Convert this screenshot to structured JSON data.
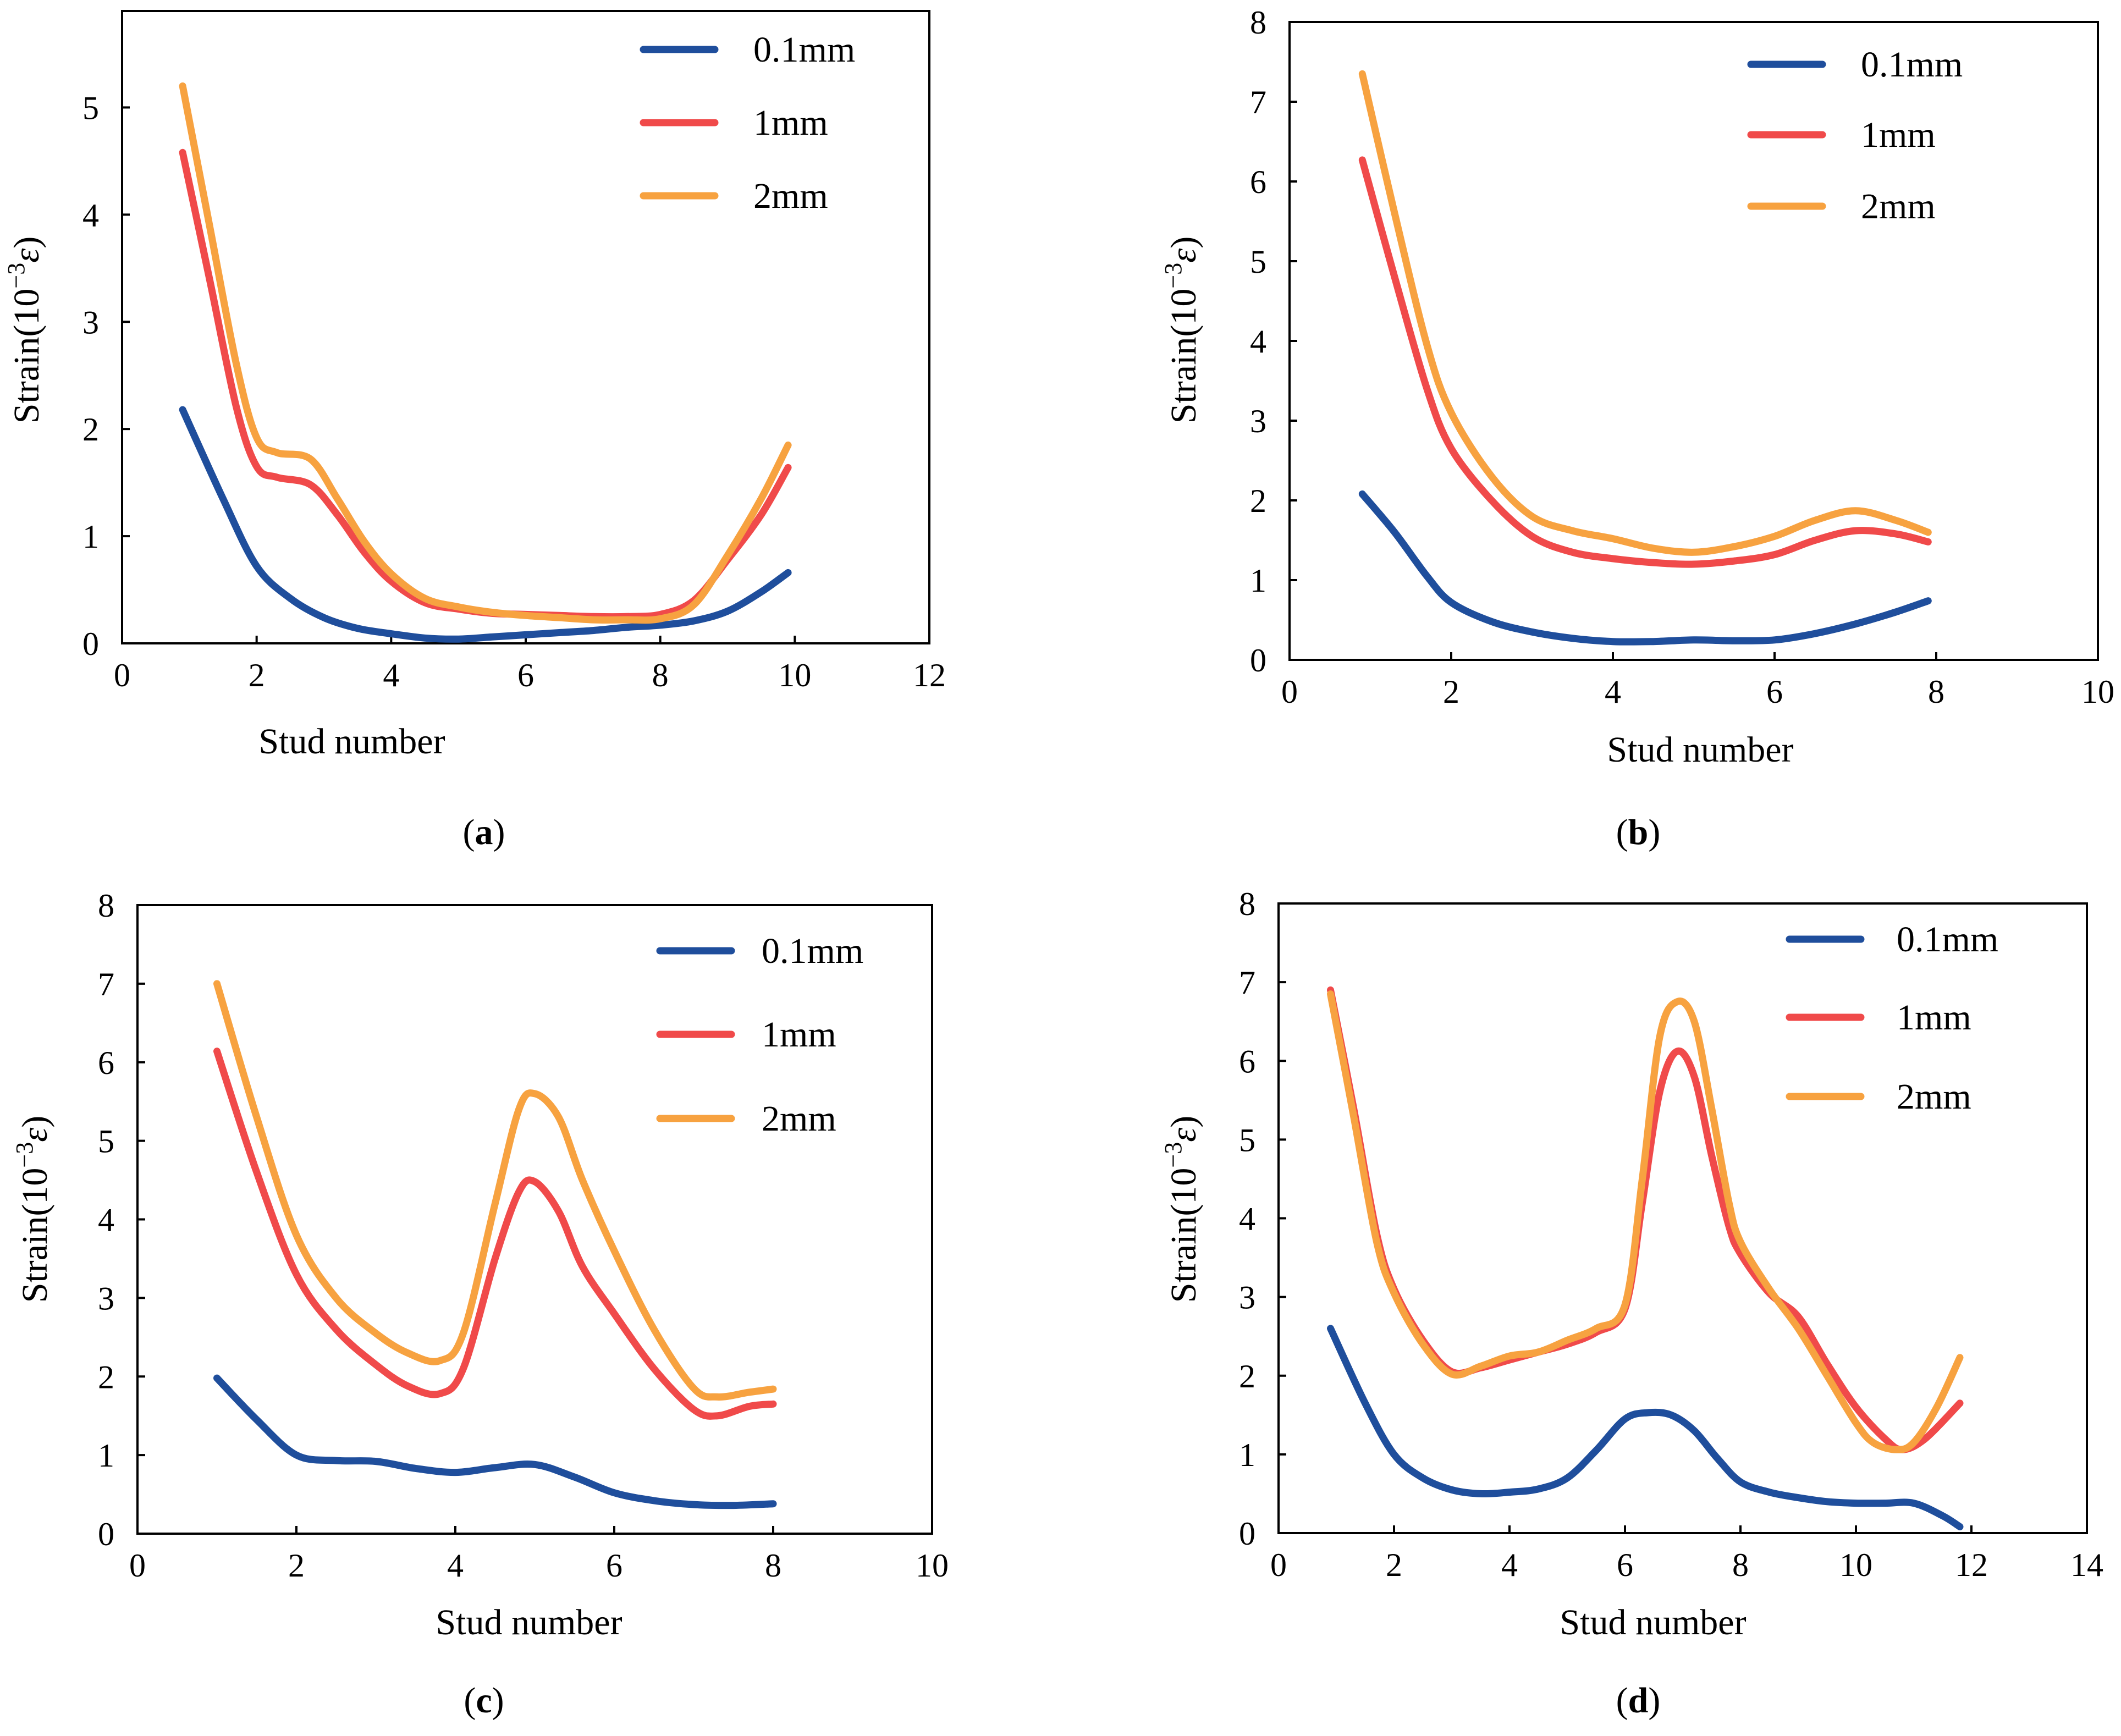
{
  "colors": {
    "blue": "#1f4e9c",
    "red": "#f04a4a",
    "orange": "#f7a240"
  },
  "series_names": [
    "0.1mm",
    "1mm",
    "2mm"
  ],
  "chart_data": [
    {
      "type": "line",
      "panel_label": "a",
      "xlabel": "Stud number",
      "ylabel_prefix": "Strain(10",
      "ylabel_exp": "−3",
      "ylabel_unit": "ε",
      "ylabel_close": ")",
      "xlim": [
        0,
        12
      ],
      "ylim": [
        0,
        5.9
      ],
      "xticks": [
        0,
        2,
        4,
        6,
        8,
        10,
        12
      ],
      "yticks": [
        0,
        1,
        2,
        3,
        4,
        5
      ],
      "legend_position": "top-right",
      "series": [
        {
          "name": "0.1mm",
          "color": "#1f4e9c",
          "x": [
            0.9,
            1.5,
            2.0,
            2.5,
            3.0,
            3.5,
            4.0,
            4.5,
            5.0,
            5.5,
            6.0,
            6.5,
            7.0,
            7.5,
            8.0,
            8.5,
            9.0,
            9.5,
            9.9
          ],
          "y": [
            2.18,
            1.35,
            0.72,
            0.42,
            0.24,
            0.14,
            0.09,
            0.05,
            0.04,
            0.06,
            0.08,
            0.1,
            0.12,
            0.15,
            0.17,
            0.21,
            0.3,
            0.48,
            0.66
          ]
        },
        {
          "name": "1mm",
          "color": "#f04a4a",
          "x": [
            0.9,
            1.3,
            1.7,
            2.0,
            2.3,
            2.8,
            3.2,
            3.6,
            4.0,
            4.5,
            5.0,
            5.5,
            6.0,
            6.5,
            7.0,
            7.5,
            8.0,
            8.5,
            9.0,
            9.5,
            9.9
          ],
          "y": [
            4.58,
            3.4,
            2.2,
            1.65,
            1.55,
            1.48,
            1.2,
            0.85,
            0.58,
            0.38,
            0.32,
            0.28,
            0.27,
            0.26,
            0.25,
            0.25,
            0.27,
            0.4,
            0.78,
            1.2,
            1.64
          ]
        },
        {
          "name": "2mm",
          "color": "#f7a240",
          "x": [
            0.9,
            1.3,
            1.7,
            2.0,
            2.3,
            2.8,
            3.2,
            3.6,
            4.0,
            4.5,
            5.0,
            5.5,
            6.0,
            6.5,
            7.0,
            7.5,
            8.0,
            8.5,
            9.0,
            9.5,
            9.9
          ],
          "y": [
            5.2,
            3.9,
            2.6,
            1.92,
            1.78,
            1.72,
            1.35,
            0.95,
            0.65,
            0.42,
            0.34,
            0.29,
            0.26,
            0.24,
            0.22,
            0.22,
            0.23,
            0.36,
            0.82,
            1.35,
            1.85
          ]
        }
      ]
    },
    {
      "type": "line",
      "panel_label": "b",
      "xlabel": "Stud number",
      "ylabel_prefix": "Strain(10",
      "ylabel_exp": "−3",
      "ylabel_unit": "ε",
      "ylabel_close": ")",
      "xlim": [
        0,
        10
      ],
      "ylim": [
        0,
        8
      ],
      "xticks": [
        0,
        2,
        4,
        6,
        8,
        10
      ],
      "yticks": [
        0,
        1,
        2,
        3,
        4,
        5,
        6,
        7,
        8
      ],
      "legend_position": "top-right",
      "series": [
        {
          "name": "0.1mm",
          "color": "#1f4e9c",
          "x": [
            0.9,
            1.3,
            1.7,
            2.0,
            2.5,
            3.0,
            3.5,
            4.0,
            4.5,
            5.0,
            5.5,
            6.0,
            6.5,
            7.0,
            7.5,
            7.9
          ],
          "y": [
            2.08,
            1.6,
            1.05,
            0.72,
            0.48,
            0.35,
            0.27,
            0.23,
            0.23,
            0.25,
            0.24,
            0.25,
            0.33,
            0.45,
            0.6,
            0.74
          ]
        },
        {
          "name": "1mm",
          "color": "#f04a4a",
          "x": [
            0.9,
            1.3,
            1.7,
            2.0,
            2.5,
            3.0,
            3.5,
            4.0,
            4.5,
            5.0,
            5.5,
            6.0,
            6.5,
            7.0,
            7.5,
            7.9
          ],
          "y": [
            6.27,
            4.8,
            3.4,
            2.65,
            2.0,
            1.55,
            1.35,
            1.27,
            1.22,
            1.2,
            1.24,
            1.32,
            1.5,
            1.62,
            1.58,
            1.48
          ]
        },
        {
          "name": "2mm",
          "color": "#f7a240",
          "x": [
            0.9,
            1.3,
            1.7,
            2.0,
            2.5,
            3.0,
            3.5,
            4.0,
            4.5,
            5.0,
            5.5,
            6.0,
            6.5,
            7.0,
            7.5,
            7.9
          ],
          "y": [
            7.35,
            5.6,
            3.95,
            3.1,
            2.3,
            1.8,
            1.62,
            1.52,
            1.4,
            1.35,
            1.42,
            1.55,
            1.75,
            1.87,
            1.75,
            1.6
          ]
        }
      ]
    },
    {
      "type": "line",
      "panel_label": "c",
      "xlabel": "Stud number",
      "ylabel_prefix": "Strain(10",
      "ylabel_exp": "−3",
      "ylabel_unit": "ε",
      "ylabel_close": ")",
      "xlim": [
        0,
        10
      ],
      "ylim": [
        0,
        8
      ],
      "xticks": [
        0,
        2,
        4,
        6,
        8,
        10
      ],
      "yticks": [
        0,
        1,
        2,
        3,
        4,
        5,
        6,
        7,
        8
      ],
      "legend_position": "top-right",
      "series": [
        {
          "name": "0.1mm",
          "color": "#1f4e9c",
          "x": [
            1.0,
            1.5,
            2.0,
            2.5,
            3.0,
            3.5,
            4.0,
            4.5,
            5.0,
            5.5,
            6.0,
            6.5,
            7.0,
            7.5,
            8.0
          ],
          "y": [
            1.98,
            1.45,
            1.0,
            0.93,
            0.92,
            0.83,
            0.78,
            0.84,
            0.88,
            0.72,
            0.52,
            0.42,
            0.37,
            0.36,
            0.38
          ]
        },
        {
          "name": "1mm",
          "color": "#f04a4a",
          "x": [
            1.0,
            1.5,
            2.0,
            2.5,
            3.0,
            3.4,
            3.8,
            4.1,
            4.5,
            4.8,
            5.0,
            5.3,
            5.6,
            6.0,
            6.5,
            7.0,
            7.3,
            7.7,
            8.0
          ],
          "y": [
            6.14,
            4.6,
            3.3,
            2.6,
            2.15,
            1.88,
            1.78,
            2.1,
            3.5,
            4.35,
            4.48,
            4.1,
            3.4,
            2.8,
            2.1,
            1.58,
            1.5,
            1.62,
            1.65
          ]
        },
        {
          "name": "2mm",
          "color": "#f7a240",
          "x": [
            1.0,
            1.5,
            2.0,
            2.5,
            3.0,
            3.4,
            3.8,
            4.1,
            4.5,
            4.8,
            5.0,
            5.3,
            5.6,
            6.0,
            6.5,
            7.0,
            7.3,
            7.7,
            8.0
          ],
          "y": [
            7.0,
            5.3,
            3.8,
            3.0,
            2.55,
            2.3,
            2.2,
            2.55,
            4.2,
            5.4,
            5.6,
            5.3,
            4.5,
            3.6,
            2.6,
            1.85,
            1.74,
            1.8,
            1.84
          ]
        }
      ]
    },
    {
      "type": "line",
      "panel_label": "d",
      "xlabel": "Stud number",
      "ylabel_prefix": "Strain(10",
      "ylabel_exp": "−3",
      "ylabel_unit": "ε",
      "ylabel_close": ")",
      "xlim": [
        0,
        14
      ],
      "ylim": [
        0,
        8
      ],
      "xticks": [
        0,
        2,
        4,
        6,
        8,
        10,
        12,
        14
      ],
      "yticks": [
        0,
        1,
        2,
        3,
        4,
        5,
        6,
        7,
        8
      ],
      "legend_position": "top-right",
      "series": [
        {
          "name": "0.1mm",
          "color": "#1f4e9c",
          "x": [
            0.9,
            1.5,
            2.0,
            2.5,
            3.0,
            3.5,
            4.0,
            4.5,
            5.0,
            5.5,
            6.0,
            6.4,
            6.8,
            7.2,
            7.6,
            8.0,
            8.5,
            9.0,
            9.5,
            10.0,
            10.5,
            11.0,
            11.5,
            11.8
          ],
          "y": [
            2.6,
            1.65,
            1.0,
            0.7,
            0.55,
            0.5,
            0.52,
            0.56,
            0.7,
            1.05,
            1.45,
            1.53,
            1.5,
            1.3,
            0.95,
            0.65,
            0.52,
            0.45,
            0.4,
            0.38,
            0.38,
            0.38,
            0.22,
            0.08
          ]
        },
        {
          "name": "1mm",
          "color": "#f04a4a",
          "x": [
            0.9,
            1.3,
            1.7,
            2.0,
            2.5,
            3.0,
            3.5,
            4.0,
            4.5,
            5.0,
            5.5,
            6.0,
            6.3,
            6.6,
            6.9,
            7.2,
            7.5,
            7.8,
            8.0,
            8.5,
            9.0,
            9.5,
            10.0,
            10.5,
            10.8,
            11.2,
            11.8
          ],
          "y": [
            6.9,
            5.4,
            3.8,
            3.1,
            2.45,
            2.05,
            2.1,
            2.2,
            2.3,
            2.4,
            2.55,
            2.85,
            4.2,
            5.6,
            6.12,
            5.8,
            4.8,
            3.9,
            3.55,
            3.05,
            2.75,
            2.15,
            1.6,
            1.2,
            1.06,
            1.2,
            1.65
          ]
        },
        {
          "name": "2mm",
          "color": "#f7a240",
          "x": [
            0.9,
            1.3,
            1.7,
            2.0,
            2.5,
            3.0,
            3.5,
            4.0,
            4.5,
            5.0,
            5.5,
            6.0,
            6.3,
            6.6,
            6.9,
            7.2,
            7.5,
            7.8,
            8.0,
            8.5,
            9.0,
            9.5,
            10.0,
            10.3,
            10.7,
            11.0,
            11.4,
            11.8
          ],
          "y": [
            6.85,
            5.3,
            3.7,
            3.05,
            2.4,
            2.02,
            2.12,
            2.25,
            2.3,
            2.45,
            2.6,
            2.9,
            4.5,
            6.3,
            6.75,
            6.5,
            5.4,
            4.2,
            3.7,
            3.1,
            2.6,
            2.0,
            1.4,
            1.15,
            1.06,
            1.15,
            1.6,
            2.23
          ]
        }
      ]
    }
  ]
}
